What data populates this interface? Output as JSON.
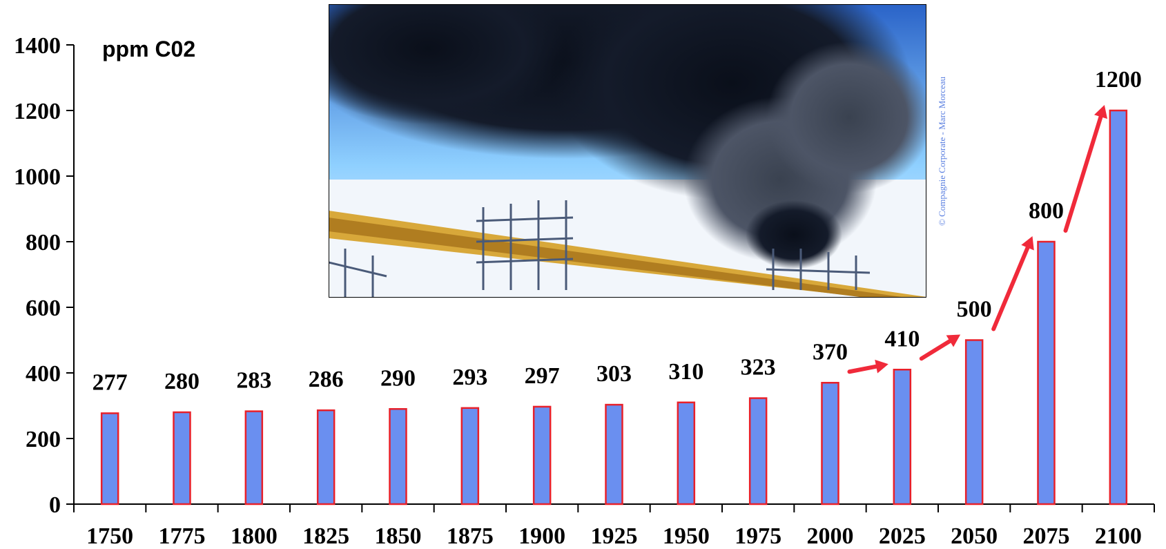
{
  "chart_data": {
    "type": "bar",
    "ylabel": "ppm C02",
    "categories": [
      "1750",
      "1775",
      "1800",
      "1825",
      "1850",
      "1875",
      "1900",
      "1925",
      "1950",
      "1975",
      "2000",
      "2025",
      "2050",
      "2075",
      "2100"
    ],
    "values": [
      277,
      280,
      283,
      286,
      290,
      293,
      297,
      303,
      310,
      323,
      370,
      410,
      500,
      800,
      1200
    ],
    "data_labels": [
      "277",
      "280",
      "283",
      "286",
      "290",
      "293",
      "297",
      "303",
      "310",
      "323",
      "370",
      "410",
      "500",
      "800",
      "1200"
    ],
    "yticks": [
      0,
      200,
      400,
      600,
      800,
      1000,
      1200,
      1400
    ],
    "ylim": [
      0,
      1400
    ],
    "grid": false,
    "legend": "none",
    "bar_fill": "#6a8ff0",
    "bar_stroke": "#e8202a",
    "arrow_color": "#f02a3a",
    "arrows": [
      [
        "2000",
        "2025"
      ],
      [
        "2025",
        "2050"
      ],
      [
        "2050",
        "2075"
      ],
      [
        "2075",
        "2100"
      ]
    ]
  },
  "photo": {
    "subject": "smoke-plume-photo",
    "credit": "© Compagnie Corporate - Marc Morceau"
  }
}
